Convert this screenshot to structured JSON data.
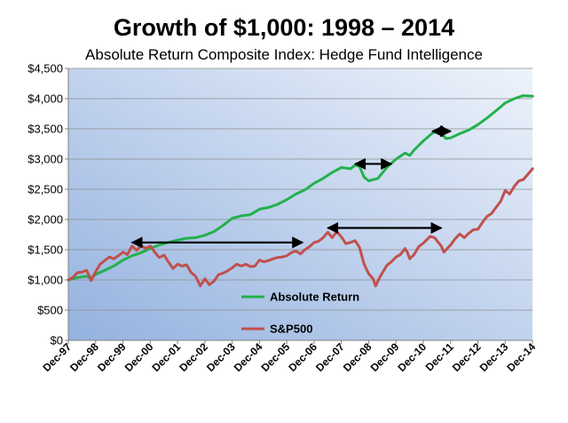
{
  "chart_data": {
    "type": "line",
    "title": "Growth of $1,000: 1998 – 2014",
    "subtitle": "Absolute Return Composite Index: Hedge Fund Intelligence",
    "xlabel": "",
    "ylabel": "",
    "ylim": [
      0,
      4500
    ],
    "xlim": [
      1997.917,
      2014.917
    ],
    "yticks": [
      0,
      500,
      1000,
      1500,
      2000,
      2500,
      3000,
      3500,
      4000,
      4500
    ],
    "ytick_labels": [
      "$0",
      "$500",
      "$1,000",
      "$1,500",
      "$2,000",
      "$2,500",
      "$3,000",
      "$3,500",
      "$4,000",
      "$4,500"
    ],
    "xtick_labels": [
      "Dec-97",
      "Dec-98",
      "Dec-99",
      "Dec-00",
      "Dec-01",
      "Dec-02",
      "Dec-03",
      "Dec-04",
      "Dec-05",
      "Dec-06",
      "Dec-07",
      "Dec-08",
      "Dec-09",
      "Dec-10",
      "Dec-11",
      "Dec-12",
      "Dec-13",
      "Dec-14"
    ],
    "grid": true,
    "legend": "bottom-center inside",
    "series": [
      {
        "name": "Absolute Return",
        "color": "#22b14c",
        "points": [
          [
            1997.92,
            1000
          ],
          [
            1998.25,
            1040
          ],
          [
            1998.58,
            1060
          ],
          [
            1998.75,
            1030
          ],
          [
            1998.92,
            1090
          ],
          [
            1999.25,
            1160
          ],
          [
            1999.58,
            1230
          ],
          [
            1999.92,
            1330
          ],
          [
            2000.25,
            1400
          ],
          [
            2000.58,
            1450
          ],
          [
            2000.92,
            1520
          ],
          [
            2001.25,
            1580
          ],
          [
            2001.58,
            1620
          ],
          [
            2001.92,
            1660
          ],
          [
            2002.25,
            1690
          ],
          [
            2002.58,
            1700
          ],
          [
            2002.92,
            1740
          ],
          [
            2003.25,
            1800
          ],
          [
            2003.58,
            1900
          ],
          [
            2003.92,
            2020
          ],
          [
            2004.25,
            2060
          ],
          [
            2004.58,
            2080
          ],
          [
            2004.92,
            2170
          ],
          [
            2005.25,
            2200
          ],
          [
            2005.58,
            2250
          ],
          [
            2005.92,
            2330
          ],
          [
            2006.25,
            2420
          ],
          [
            2006.58,
            2490
          ],
          [
            2006.92,
            2600
          ],
          [
            2007.25,
            2680
          ],
          [
            2007.58,
            2780
          ],
          [
            2007.92,
            2860
          ],
          [
            2008.25,
            2840
          ],
          [
            2008.42,
            2900
          ],
          [
            2008.58,
            2880
          ],
          [
            2008.75,
            2700
          ],
          [
            2008.92,
            2640
          ],
          [
            2009.25,
            2680
          ],
          [
            2009.58,
            2860
          ],
          [
            2009.92,
            3000
          ],
          [
            2010.25,
            3100
          ],
          [
            2010.42,
            3060
          ],
          [
            2010.58,
            3150
          ],
          [
            2010.92,
            3300
          ],
          [
            2011.25,
            3430
          ],
          [
            2011.42,
            3460
          ],
          [
            2011.58,
            3420
          ],
          [
            2011.75,
            3340
          ],
          [
            2011.92,
            3350
          ],
          [
            2012.25,
            3420
          ],
          [
            2012.58,
            3480
          ],
          [
            2012.92,
            3570
          ],
          [
            2013.25,
            3680
          ],
          [
            2013.58,
            3800
          ],
          [
            2013.92,
            3930
          ],
          [
            2014.25,
            4000
          ],
          [
            2014.58,
            4050
          ],
          [
            2014.92,
            4040
          ]
        ]
      },
      {
        "name": "S&P500",
        "color": "#c0504d",
        "points": [
          [
            1997.92,
            1000
          ],
          [
            1998.08,
            1040
          ],
          [
            1998.25,
            1120
          ],
          [
            1998.42,
            1130
          ],
          [
            1998.58,
            1160
          ],
          [
            1998.67,
            1080
          ],
          [
            1998.75,
            990
          ],
          [
            1998.92,
            1140
          ],
          [
            1999.08,
            1260
          ],
          [
            1999.25,
            1320
          ],
          [
            1999.42,
            1380
          ],
          [
            1999.58,
            1350
          ],
          [
            1999.75,
            1400
          ],
          [
            1999.92,
            1460
          ],
          [
            2000.08,
            1420
          ],
          [
            2000.25,
            1560
          ],
          [
            2000.42,
            1490
          ],
          [
            2000.58,
            1570
          ],
          [
            2000.75,
            1520
          ],
          [
            2000.92,
            1560
          ],
          [
            2001.08,
            1460
          ],
          [
            2001.25,
            1370
          ],
          [
            2001.42,
            1410
          ],
          [
            2001.58,
            1300
          ],
          [
            2001.75,
            1190
          ],
          [
            2001.92,
            1260
          ],
          [
            2002.08,
            1230
          ],
          [
            2002.25,
            1250
          ],
          [
            2002.42,
            1120
          ],
          [
            2002.58,
            1060
          ],
          [
            2002.75,
            900
          ],
          [
            2002.92,
            1020
          ],
          [
            2003.08,
            920
          ],
          [
            2003.25,
            980
          ],
          [
            2003.42,
            1090
          ],
          [
            2003.58,
            1110
          ],
          [
            2003.75,
            1150
          ],
          [
            2003.92,
            1200
          ],
          [
            2004.08,
            1260
          ],
          [
            2004.25,
            1230
          ],
          [
            2004.42,
            1260
          ],
          [
            2004.58,
            1220
          ],
          [
            2004.75,
            1230
          ],
          [
            2004.92,
            1330
          ],
          [
            2005.08,
            1300
          ],
          [
            2005.25,
            1320
          ],
          [
            2005.42,
            1350
          ],
          [
            2005.58,
            1370
          ],
          [
            2005.75,
            1380
          ],
          [
            2005.92,
            1400
          ],
          [
            2006.08,
            1450
          ],
          [
            2006.25,
            1480
          ],
          [
            2006.42,
            1430
          ],
          [
            2006.58,
            1500
          ],
          [
            2006.75,
            1550
          ],
          [
            2006.92,
            1620
          ],
          [
            2007.08,
            1640
          ],
          [
            2007.25,
            1700
          ],
          [
            2007.42,
            1790
          ],
          [
            2007.58,
            1700
          ],
          [
            2007.75,
            1800
          ],
          [
            2007.92,
            1710
          ],
          [
            2008.08,
            1600
          ],
          [
            2008.25,
            1620
          ],
          [
            2008.42,
            1650
          ],
          [
            2008.58,
            1540
          ],
          [
            2008.75,
            1260
          ],
          [
            2008.92,
            1100
          ],
          [
            2009.08,
            1020
          ],
          [
            2009.17,
            900
          ],
          [
            2009.33,
            1050
          ],
          [
            2009.58,
            1240
          ],
          [
            2009.75,
            1300
          ],
          [
            2009.92,
            1380
          ],
          [
            2010.08,
            1420
          ],
          [
            2010.25,
            1520
          ],
          [
            2010.33,
            1460
          ],
          [
            2010.42,
            1350
          ],
          [
            2010.58,
            1420
          ],
          [
            2010.75,
            1550
          ],
          [
            2010.92,
            1610
          ],
          [
            2011.17,
            1720
          ],
          [
            2011.33,
            1700
          ],
          [
            2011.58,
            1560
          ],
          [
            2011.67,
            1460
          ],
          [
            2011.92,
            1580
          ],
          [
            2012.08,
            1680
          ],
          [
            2012.25,
            1760
          ],
          [
            2012.42,
            1700
          ],
          [
            2012.58,
            1770
          ],
          [
            2012.75,
            1830
          ],
          [
            2012.92,
            1840
          ],
          [
            2013.08,
            1950
          ],
          [
            2013.25,
            2050
          ],
          [
            2013.42,
            2100
          ],
          [
            2013.58,
            2200
          ],
          [
            2013.75,
            2300
          ],
          [
            2013.92,
            2480
          ],
          [
            2014.08,
            2420
          ],
          [
            2014.25,
            2550
          ],
          [
            2014.42,
            2640
          ],
          [
            2014.58,
            2660
          ],
          [
            2014.75,
            2750
          ],
          [
            2014.92,
            2840
          ]
        ]
      }
    ],
    "annotations": [
      {
        "type": "double-arrow",
        "x0": 2000.25,
        "x1": 2006.5,
        "y": 1620,
        "color": "#000000"
      },
      {
        "type": "double-arrow",
        "x0": 2007.42,
        "x1": 2011.58,
        "y": 1860,
        "color": "#000000"
      },
      {
        "type": "double-arrow",
        "x0": 2008.42,
        "x1": 2009.75,
        "y": 2920,
        "color": "#000000"
      },
      {
        "type": "double-arrow",
        "x0": 2011.25,
        "x1": 2011.92,
        "y": 3460,
        "color": "#000000"
      }
    ]
  }
}
